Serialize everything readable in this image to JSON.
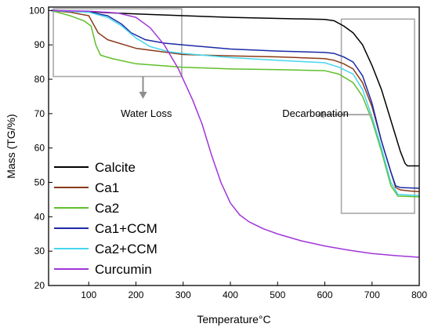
{
  "chart_data": {
    "type": "line",
    "xlabel": "Temperature°C",
    "ylabel": "Mass (TG/%)",
    "xlim": [
      15,
      800
    ],
    "ylim": [
      20,
      101
    ],
    "xticks": [
      "100",
      "200",
      "300",
      "400",
      "500",
      "600",
      "700",
      "800"
    ],
    "yticks": [
      "20",
      "30",
      "40",
      "50",
      "60",
      "70",
      "80",
      "90",
      "100"
    ],
    "legend_position": "bottom-left",
    "series": [
      {
        "name": "Calcite",
        "color": "#000000",
        "points": [
          [
            20,
            100
          ],
          [
            100,
            99.6
          ],
          [
            200,
            99.0
          ],
          [
            300,
            98.5
          ],
          [
            400,
            98.0
          ],
          [
            500,
            97.7
          ],
          [
            600,
            97.4
          ],
          [
            620,
            97.0
          ],
          [
            640,
            95.5
          ],
          [
            660,
            93.5
          ],
          [
            680,
            90.0
          ],
          [
            700,
            84.0
          ],
          [
            720,
            77.0
          ],
          [
            740,
            68.0
          ],
          [
            760,
            59.0
          ],
          [
            770,
            55.5
          ],
          [
            775,
            54.8
          ],
          [
            790,
            54.8
          ],
          [
            800,
            54.8
          ]
        ]
      },
      {
        "name": "Ca1",
        "color": "#8b3a1a",
        "points": [
          [
            20,
            100
          ],
          [
            60,
            99.5
          ],
          [
            100,
            98.5
          ],
          [
            110,
            96.0
          ],
          [
            120,
            93.5
          ],
          [
            140,
            91.5
          ],
          [
            200,
            89.0
          ],
          [
            300,
            87.2
          ],
          [
            400,
            86.8
          ],
          [
            500,
            86.5
          ],
          [
            600,
            86.0
          ],
          [
            620,
            85.5
          ],
          [
            640,
            84.5
          ],
          [
            660,
            83.0
          ],
          [
            680,
            79.0
          ],
          [
            700,
            72.0
          ],
          [
            720,
            62.0
          ],
          [
            740,
            53.0
          ],
          [
            750,
            48.5
          ],
          [
            760,
            47.8
          ],
          [
            780,
            47.5
          ],
          [
            800,
            47.3
          ]
        ]
      },
      {
        "name": "Ca2",
        "color": "#5fbf2a",
        "points": [
          [
            20,
            100
          ],
          [
            60,
            98.5
          ],
          [
            90,
            97.0
          ],
          [
            105,
            95.5
          ],
          [
            115,
            90.0
          ],
          [
            125,
            87.0
          ],
          [
            150,
            86.0
          ],
          [
            200,
            84.5
          ],
          [
            300,
            83.5
          ],
          [
            400,
            83.0
          ],
          [
            500,
            82.8
          ],
          [
            600,
            82.5
          ],
          [
            630,
            81.5
          ],
          [
            660,
            79.0
          ],
          [
            680,
            75.0
          ],
          [
            700,
            68.0
          ],
          [
            720,
            59.0
          ],
          [
            740,
            49.0
          ],
          [
            755,
            46.0
          ],
          [
            780,
            45.9
          ],
          [
            800,
            45.8
          ]
        ]
      },
      {
        "name": "Ca1+CCM",
        "color": "#1c2aa6",
        "points": [
          [
            20,
            100
          ],
          [
            100,
            99.5
          ],
          [
            140,
            98.5
          ],
          [
            170,
            96.0
          ],
          [
            190,
            93.5
          ],
          [
            220,
            91.5
          ],
          [
            260,
            90.5
          ],
          [
            300,
            90.0
          ],
          [
            400,
            88.8
          ],
          [
            500,
            88.2
          ],
          [
            600,
            87.8
          ],
          [
            620,
            87.5
          ],
          [
            640,
            86.5
          ],
          [
            660,
            85.0
          ],
          [
            680,
            81.0
          ],
          [
            700,
            73.0
          ],
          [
            720,
            62.0
          ],
          [
            740,
            53.0
          ],
          [
            750,
            49.0
          ],
          [
            760,
            48.5
          ],
          [
            800,
            48.3
          ]
        ]
      },
      {
        "name": "Ca2+CCM",
        "color": "#46d6ee",
        "points": [
          [
            20,
            100
          ],
          [
            100,
            99.5
          ],
          [
            140,
            98.0
          ],
          [
            170,
            95.5
          ],
          [
            200,
            92.0
          ],
          [
            230,
            89.5
          ],
          [
            270,
            88.0
          ],
          [
            300,
            87.5
          ],
          [
            400,
            86.3
          ],
          [
            500,
            85.5
          ],
          [
            600,
            84.8
          ],
          [
            630,
            83.5
          ],
          [
            660,
            81.5
          ],
          [
            680,
            77.0
          ],
          [
            700,
            69.0
          ],
          [
            720,
            60.0
          ],
          [
            740,
            50.0
          ],
          [
            755,
            46.5
          ],
          [
            780,
            46.3
          ],
          [
            800,
            46.2
          ]
        ]
      },
      {
        "name": "Curcumin",
        "color": "#a135d9",
        "points": [
          [
            20,
            100
          ],
          [
            100,
            99.8
          ],
          [
            160,
            99.3
          ],
          [
            200,
            98.0
          ],
          [
            230,
            95.0
          ],
          [
            260,
            90.0
          ],
          [
            290,
            83.0
          ],
          [
            320,
            74.0
          ],
          [
            340,
            67.0
          ],
          [
            360,
            58.0
          ],
          [
            380,
            50.0
          ],
          [
            400,
            44.0
          ],
          [
            420,
            40.5
          ],
          [
            440,
            38.5
          ],
          [
            470,
            36.5
          ],
          [
            500,
            35.0
          ],
          [
            550,
            33.0
          ],
          [
            600,
            31.5
          ],
          [
            650,
            30.3
          ],
          [
            700,
            29.3
          ],
          [
            750,
            28.7
          ],
          [
            800,
            28.2
          ]
        ]
      }
    ],
    "annotations": [
      {
        "text": "Water Loss",
        "box_x": [
          25,
          297
        ],
        "box_y": [
          80.8,
          100.5
        ],
        "arrow_x": 215,
        "arrow_from_y": 80.8,
        "arrow_to_y": 74.3,
        "text_x": 222,
        "text_y": 69.1
      },
      {
        "text": "Decarbonation",
        "box_x": [
          635,
          790
        ],
        "box_y": [
          41.0,
          97.5
        ],
        "arrow_from_x": 700,
        "arrow_to_x": 582,
        "arrow_y": 69.7,
        "text_x": 510,
        "text_y": 69.1
      }
    ]
  }
}
